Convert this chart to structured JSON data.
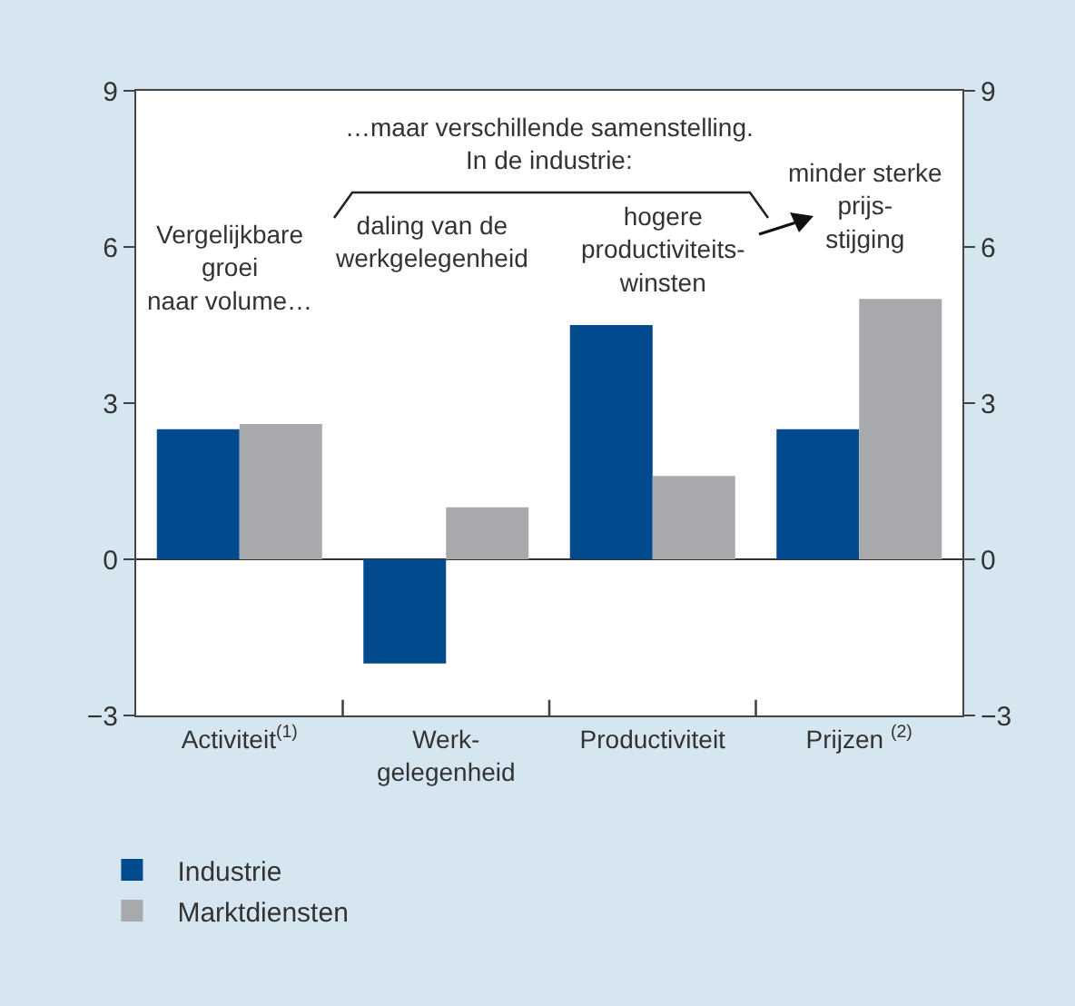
{
  "chart_data": {
    "type": "bar",
    "categories": [
      "Activiteit$^{(1)}$",
      "Werk-\ngelegenheid",
      "Productiviteit",
      "Prijzen $^{(2)}$"
    ],
    "series": [
      {
        "name": "Industrie",
        "color": "#004a8d",
        "values": [
          2.5,
          -2.0,
          4.5,
          2.5
        ]
      },
      {
        "name": "Marktdiensten",
        "color": "#a8a9ad",
        "values": [
          2.6,
          1.0,
          1.6,
          5.0
        ]
      }
    ],
    "ylim": [
      -3,
      9
    ],
    "yticks": [
      {
        "value": -3,
        "label": "−3"
      },
      0,
      3,
      6,
      9
    ],
    "y2lim": [
      -3,
      9
    ],
    "y2ticks": [
      {
        "value": -3,
        "label": "−3"
      },
      0,
      3,
      6,
      9
    ],
    "legend": "bottom",
    "annotations": [
      "…maar verschillende samenstelling.\nIn de industrie:",
      "Vergelijkbare\ngroei\nnaar volume…",
      "daling van de\nwerkgelegenheid",
      "hogere\nproductiviteits-\nwinsten",
      "minder sterke\nprijs-\nstijging"
    ]
  }
}
